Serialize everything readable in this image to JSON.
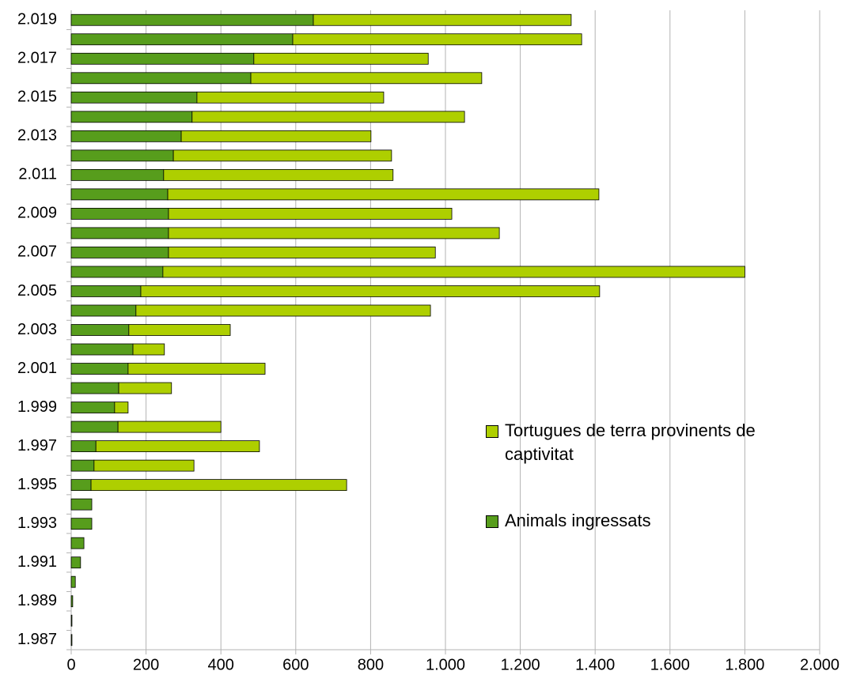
{
  "chart_data": {
    "type": "stacked_bar_horizontal",
    "categories": [
      "1.987",
      null,
      "1.989",
      null,
      "1.991",
      null,
      "1.993",
      null,
      "1.995",
      null,
      "1.997",
      null,
      "1.999",
      null,
      "2.001",
      null,
      "2.003",
      null,
      "2.005",
      null,
      "2.007",
      null,
      "2.009",
      null,
      "2.011",
      null,
      "2.013",
      null,
      "2.015",
      null,
      "2.017",
      null,
      "2.019"
    ],
    "series": [
      {
        "name": "Animals ingressats",
        "color": "#579d1c",
        "values": [
          2,
          2,
          4,
          11,
          25,
          34,
          55,
          55,
          53,
          61,
          66,
          125,
          116,
          127,
          152,
          165,
          154,
          173,
          186,
          245,
          260,
          260,
          260,
          258,
          247,
          273,
          294,
          323,
          336,
          480,
          488,
          592,
          647
        ]
      },
      {
        "name": "Tortugues de terra provinents de captivitat",
        "color": "#aecf00",
        "values": [
          0,
          0,
          0,
          0,
          0,
          0,
          0,
          0,
          683,
          267,
          437,
          275,
          36,
          141,
          366,
          84,
          271,
          787,
          1226,
          1555,
          713,
          884,
          757,
          1152,
          613,
          583,
          507,
          728,
          499,
          617,
          466,
          772,
          689
        ]
      }
    ],
    "xlim": [
      0,
      2000
    ],
    "xticks": [
      0,
      200,
      400,
      600,
      800,
      {
        "value": 1000,
        "label": "1.000"
      },
      {
        "value": 1200,
        "label": "1.200"
      },
      {
        "value": 1400,
        "label": "1.400"
      },
      {
        "value": 1600,
        "label": "1.600"
      },
      {
        "value": 1800,
        "label": "1.800"
      },
      {
        "value": 2000,
        "label": "2.000"
      }
    ],
    "grid": true
  }
}
